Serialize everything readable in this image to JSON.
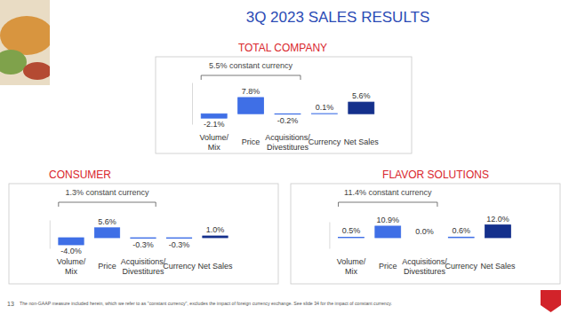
{
  "title": "3Q 2023 SALES RESULTS",
  "footnote": "The non-GAAP measure included herein, which we refer to as \"constant currency\", excludes the impact of foreign currency exchange. See slide 34 for the impact of constant currency.",
  "page_number": 13,
  "chart_data": [
    {
      "type": "bar",
      "title": "TOTAL COMPANY",
      "annotation": "5.5% constant currency",
      "categories": [
        "Volume/Mix",
        "Price",
        "Acquisitions/Divestitures",
        "Currency",
        "Net Sales"
      ],
      "values": [
        -2.1,
        7.8,
        -0.2,
        0.1,
        5.6
      ],
      "value_labels": [
        "-2.1%",
        "7.8%",
        "-0.2%",
        "0.1%",
        "5.6%"
      ],
      "colors": [
        "#3f6fe6",
        "#3f6fe6",
        "#3f6fe6",
        "#3f6fe6",
        "#14308c"
      ],
      "ylim": [
        -5,
        15
      ],
      "data_labels": true,
      "tick_labels": "x"
    },
    {
      "type": "bar",
      "title": "CONSUMER",
      "annotation": "1.3% constant currency",
      "categories": [
        "Volume/Mix",
        "Price",
        "Acquisitions/Divestitures",
        "Currency",
        "Net Sales"
      ],
      "values": [
        -4.0,
        5.6,
        -0.3,
        -0.3,
        1.0
      ],
      "value_labels": [
        "-4.0%",
        "5.6%",
        "-0.3%",
        "-0.3%",
        "1.0%"
      ],
      "colors": [
        "#3f6fe6",
        "#3f6fe6",
        "#3f6fe6",
        "#3f6fe6",
        "#14308c"
      ],
      "ylim": [
        -6,
        10
      ],
      "data_labels": true,
      "tick_labels": "x"
    },
    {
      "type": "bar",
      "title": "FLAVOR SOLUTIONS",
      "annotation": "11.4% constant currency",
      "categories": [
        "Volume/Mix",
        "Price",
        "Acquisitions/Divestitures",
        "Currency",
        "Net Sales"
      ],
      "values": [
        0.5,
        10.9,
        0.0,
        0.6,
        12.0
      ],
      "value_labels": [
        "0.5%",
        "10.9%",
        "0.0%",
        "0.6%",
        "12.0%"
      ],
      "colors": [
        "#3f6fe6",
        "#3f6fe6",
        "#3f6fe6",
        "#3f6fe6",
        "#14308c"
      ],
      "ylim": [
        -10,
        15
      ],
      "data_labels": true,
      "tick_labels": "x"
    }
  ]
}
